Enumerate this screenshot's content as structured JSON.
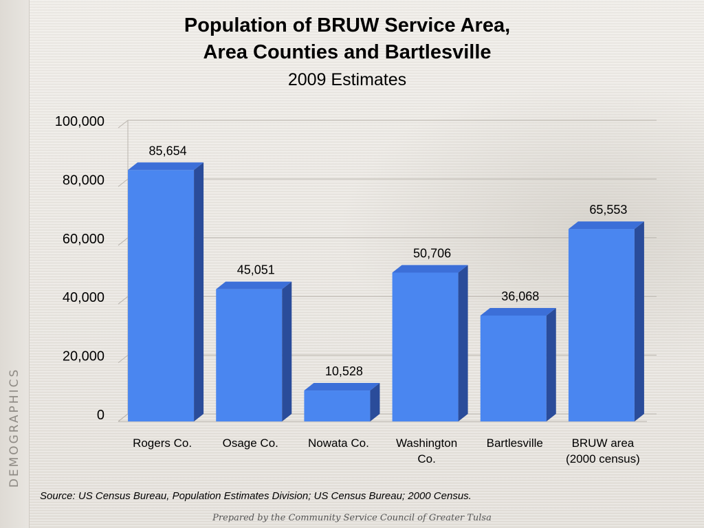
{
  "sidebar": {
    "label": "DEMOGRAPHICS"
  },
  "chart_data": {
    "type": "bar",
    "title_line1": "Population of BRUW Service Area,",
    "title_line2": "Area Counties and Bartlesville",
    "subtitle": "2009 Estimates",
    "categories": [
      [
        "Rogers Co."
      ],
      [
        "Osage Co."
      ],
      [
        "Nowata Co."
      ],
      [
        "Washington",
        "Co."
      ],
      [
        "Bartlesville"
      ],
      [
        "BRUW area",
        "(2000 census)"
      ]
    ],
    "values": [
      85654,
      45051,
      10528,
      50706,
      36068,
      65553
    ],
    "value_labels": [
      "85,654",
      "45,051",
      "10,528",
      "50,706",
      "36,068",
      "65,553"
    ],
    "yticks": [
      0,
      20000,
      40000,
      60000,
      80000,
      100000
    ],
    "ytick_labels": [
      "0",
      "20,000",
      "40,000",
      "60,000",
      "80,000",
      "100,000"
    ],
    "ylim": [
      0,
      100000
    ],
    "xlabel": "",
    "ylabel": "",
    "grid": true,
    "legend": "none",
    "bar_color": "#4a86f0",
    "bar_side_color": "#2a4c9a",
    "bar_top_color": "#3c6fd8"
  },
  "footer": {
    "source": "Source:  US Census Bureau, Population Estimates Division; US Census Bureau; 2000 Census.",
    "credit": "Prepared by the Community Service Council of Greater Tulsa"
  }
}
